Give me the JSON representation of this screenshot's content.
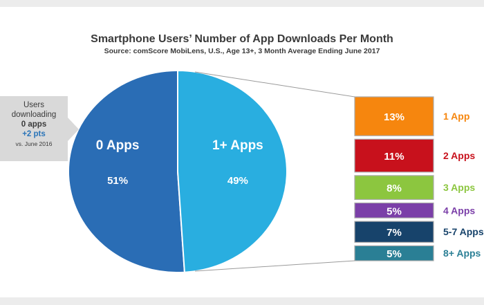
{
  "chart_data": {
    "type": "pie",
    "title": "Smartphone Users’ Number of App Downloads Per Month",
    "subtitle": "Source: comScore MobiLens, U.S., Age 13+, 3 Month Average Ending June 2017",
    "slices": [
      {
        "label": "0 Apps",
        "value": 51,
        "value_label": "51%",
        "color": "#2a6db5"
      },
      {
        "label": "1+ Apps",
        "value": 49,
        "value_label": "49%",
        "color": "#29aee0"
      }
    ],
    "breakdown": {
      "type": "bar",
      "of": "1+ Apps",
      "bars": [
        {
          "label": "1 App",
          "value": 13,
          "value_label": "13%",
          "color": "#f6860e"
        },
        {
          "label": "2 Apps",
          "value": 11,
          "value_label": "11%",
          "color": "#c8111c"
        },
        {
          "label": "3 Apps",
          "value": 8,
          "value_label": "8%",
          "color": "#8cc63f"
        },
        {
          "label": "4 Apps",
          "value": 5,
          "value_label": "5%",
          "color": "#7b3fa8"
        },
        {
          "label": "5-7 Apps",
          "value": 7,
          "value_label": "7%",
          "color": "#17436b"
        },
        {
          "label": "8+ Apps",
          "value": 5,
          "value_label": "5%",
          "color": "#2a7f95"
        }
      ]
    },
    "callout": {
      "line1": "Users",
      "line2": "downloading",
      "line3": "0 apps",
      "line4": "+2 pts",
      "line5": "vs. June 2016",
      "delta_color": "#2a74b8"
    }
  }
}
